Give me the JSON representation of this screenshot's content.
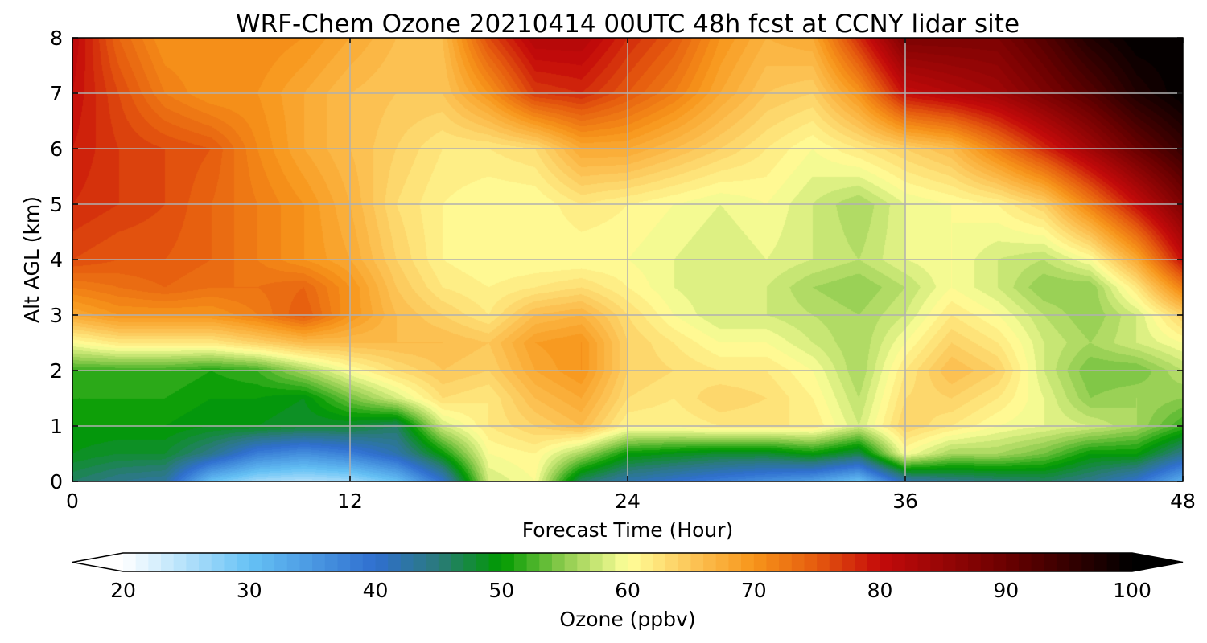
{
  "chart_data": {
    "type": "heatmap",
    "title": "WRF-Chem Ozone  20210414 00UTC 48h fcst at CCNY lidar site",
    "xlabel": "Forecast Time (Hour)",
    "ylabel": "Alt AGL (km)",
    "xlim": [
      0,
      48
    ],
    "ylim": [
      0,
      8
    ],
    "xticks": [
      0,
      12,
      24,
      36,
      48
    ],
    "yticks": [
      0,
      1,
      2,
      3,
      4,
      5,
      6,
      7,
      8
    ],
    "grid": true,
    "colorbar": {
      "label": "Ozone  (ppbv)",
      "range": [
        20,
        100
      ],
      "ticks": [
        20,
        30,
        40,
        50,
        60,
        70,
        80,
        90,
        100
      ],
      "extend": "both",
      "colors": [
        {
          "v": 20,
          "c": "#ffffff"
        },
        {
          "v": 30,
          "c": "#66c2f5"
        },
        {
          "v": 40,
          "c": "#2f6fcf"
        },
        {
          "v": 45,
          "c": "#2a7a7a"
        },
        {
          "v": 50,
          "c": "#009a00"
        },
        {
          "v": 55,
          "c": "#8fcc4f"
        },
        {
          "v": 60,
          "c": "#ffff99"
        },
        {
          "v": 65,
          "c": "#fcc658"
        },
        {
          "v": 70,
          "c": "#f7951a"
        },
        {
          "v": 75,
          "c": "#e55a0e"
        },
        {
          "v": 80,
          "c": "#c50a0a"
        },
        {
          "v": 90,
          "c": "#6a0000"
        },
        {
          "v": 100,
          "c": "#000000"
        }
      ]
    },
    "grid_data": {
      "x": [
        0,
        2,
        4,
        6,
        8,
        10,
        12,
        14,
        16,
        18,
        20,
        22,
        24,
        26,
        28,
        30,
        32,
        34,
        36,
        38,
        40,
        42,
        44,
        46,
        48
      ],
      "y": [
        0,
        0.5,
        1,
        1.5,
        2,
        2.5,
        3,
        3.5,
        4,
        5,
        6,
        7,
        8
      ],
      "z": [
        [
          46,
          44,
          43,
          30,
          26,
          25,
          26,
          30,
          40,
          58,
          60,
          46,
          42,
          40,
          38,
          36,
          34,
          30,
          42,
          44,
          45,
          46,
          44,
          40,
          32
        ],
        [
          49,
          48,
          48,
          44,
          38,
          36,
          38,
          42,
          50,
          60,
          61,
          56,
          50,
          49,
          48,
          48,
          50,
          47,
          60,
          56,
          56,
          54,
          50,
          50,
          44
        ],
        [
          50,
          50,
          50,
          49,
          49,
          48,
          48,
          46,
          58,
          62,
          64,
          66,
          61,
          61,
          62,
          62,
          62,
          58,
          64,
          62,
          60,
          59,
          58,
          56,
          52
        ],
        [
          51,
          51,
          51,
          50,
          50,
          49,
          54,
          58,
          63,
          62,
          66,
          68,
          63,
          62,
          64,
          63,
          61,
          57,
          63,
          64,
          62,
          59,
          55,
          56,
          55
        ],
        [
          52,
          52,
          52,
          51,
          52,
          56,
          60,
          63,
          65,
          64,
          68,
          70,
          64,
          63,
          62,
          62,
          60,
          56,
          62,
          66,
          64,
          58,
          54,
          54,
          57
        ],
        [
          60,
          62,
          62,
          62,
          64,
          66,
          66,
          66,
          66,
          65,
          69,
          70,
          64,
          62,
          60,
          60,
          58,
          56,
          60,
          64,
          62,
          58,
          56,
          58,
          60
        ],
        [
          68,
          70,
          70,
          70,
          72,
          75,
          70,
          66,
          64,
          62,
          66,
          67,
          63,
          60,
          58,
          58,
          57,
          56,
          58,
          62,
          60,
          57,
          55,
          58,
          64
        ],
        [
          72,
          73,
          74,
          73,
          73,
          74,
          70,
          65,
          62,
          61,
          62,
          63,
          61,
          59,
          58,
          58,
          56,
          55,
          57,
          60,
          58,
          55,
          55,
          62,
          72
        ],
        [
          76,
          75,
          75,
          74,
          72,
          70,
          68,
          64,
          61,
          60,
          60,
          60,
          60,
          59,
          58,
          59,
          58,
          57,
          59,
          60,
          58,
          57,
          60,
          68,
          80
        ],
        [
          78,
          77,
          76,
          74,
          72,
          70,
          67,
          63,
          61,
          60,
          60,
          62,
          61,
          60,
          59,
          60,
          58,
          56,
          59,
          60,
          61,
          64,
          72,
          80,
          88
        ],
        [
          79,
          77,
          76,
          75,
          71,
          68,
          66,
          64,
          62,
          62,
          63,
          68,
          68,
          66,
          64,
          62,
          60,
          62,
          64,
          66,
          72,
          78,
          84,
          90,
          95
        ],
        [
          80,
          76,
          72,
          70,
          70,
          68,
          66,
          65,
          65,
          70,
          77,
          78,
          75,
          72,
          68,
          65,
          64,
          70,
          80,
          82,
          84,
          88,
          92,
          97,
          100
        ],
        [
          81,
          74,
          70,
          70,
          71,
          70,
          68,
          66,
          66,
          76,
          82,
          82,
          78,
          75,
          70,
          67,
          68,
          78,
          88,
          88,
          88,
          92,
          97,
          100,
          100
        ]
      ]
    }
  }
}
